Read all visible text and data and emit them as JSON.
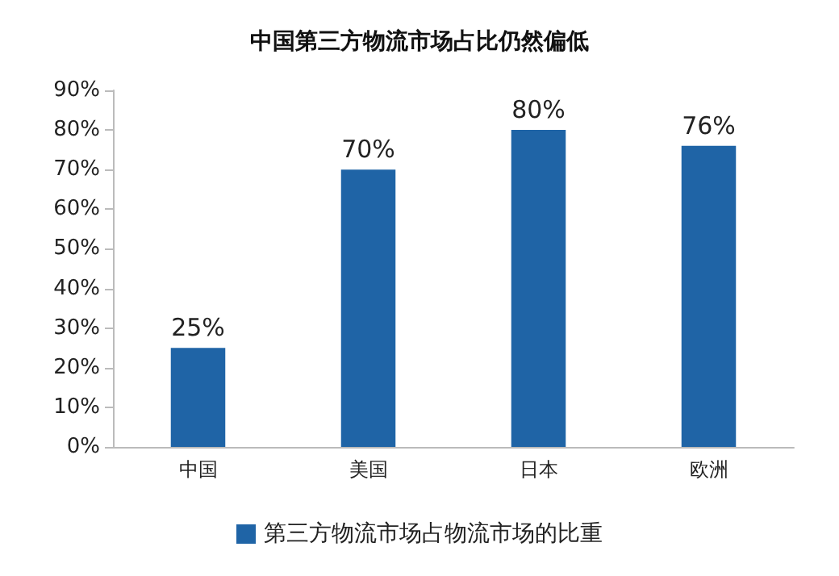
{
  "chart_data": {
    "type": "bar",
    "title": "中国第三方物流市场占比仍然偏低",
    "categories": [
      "中国",
      "美国",
      "日本",
      "欧洲"
    ],
    "series": [
      {
        "name": "第三方物流市场占物流市场的比重",
        "color": "#1f64a6",
        "values": [
          25,
          70,
          80,
          76
        ],
        "value_labels": [
          "25%",
          "70%",
          "80%",
          "76%"
        ]
      }
    ],
    "ylim": [
      0,
      90
    ],
    "yticks": [
      {
        "value": 0,
        "label": "0%"
      },
      {
        "value": 10,
        "label": "10%"
      },
      {
        "value": 20,
        "label": "20%"
      },
      {
        "value": 30,
        "label": "30%"
      },
      {
        "value": 40,
        "label": "40%"
      },
      {
        "value": 50,
        "label": "50%"
      },
      {
        "value": 60,
        "label": "60%"
      },
      {
        "value": 70,
        "label": "70%"
      },
      {
        "value": 80,
        "label": "80%"
      },
      {
        "value": 90,
        "label": "90%"
      }
    ],
    "grid": false,
    "legend": "bottom"
  }
}
